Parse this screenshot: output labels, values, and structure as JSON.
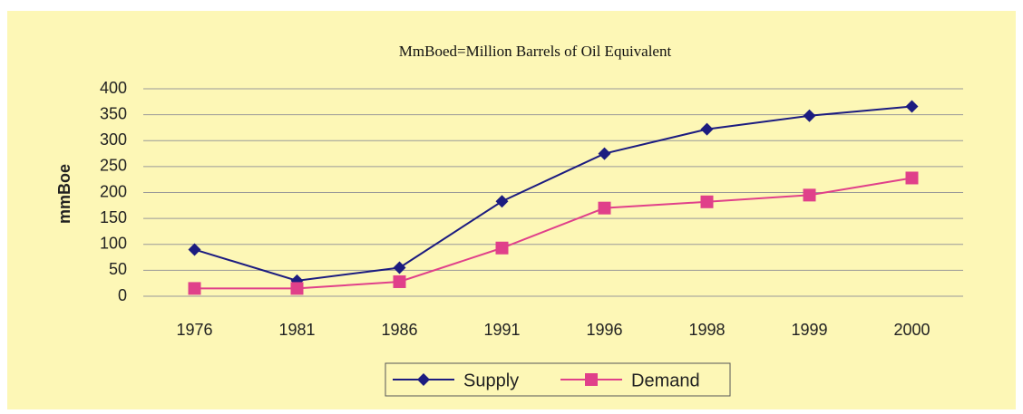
{
  "chart_data": {
    "type": "line",
    "title": "MmBoed=Million Barrels of Oil Equivalent",
    "y_label": "mmBoe",
    "categories": [
      "1976",
      "1981",
      "1986",
      "1991",
      "1996",
      "1998",
      "1999",
      "2000"
    ],
    "series": [
      {
        "name": "Supply",
        "color": "#1c1c80",
        "marker": "diamond",
        "values": [
          90,
          30,
          55,
          183,
          275,
          322,
          348,
          366
        ]
      },
      {
        "name": "Demand",
        "color": "#e0408a",
        "marker": "square",
        "values": [
          15,
          15,
          28,
          93,
          170,
          182,
          195,
          228
        ]
      }
    ],
    "ylim": [
      0,
      400
    ],
    "yticks": [
      0,
      50,
      100,
      150,
      200,
      250,
      300,
      350,
      400
    ],
    "grid": true,
    "legend": "bottom"
  }
}
